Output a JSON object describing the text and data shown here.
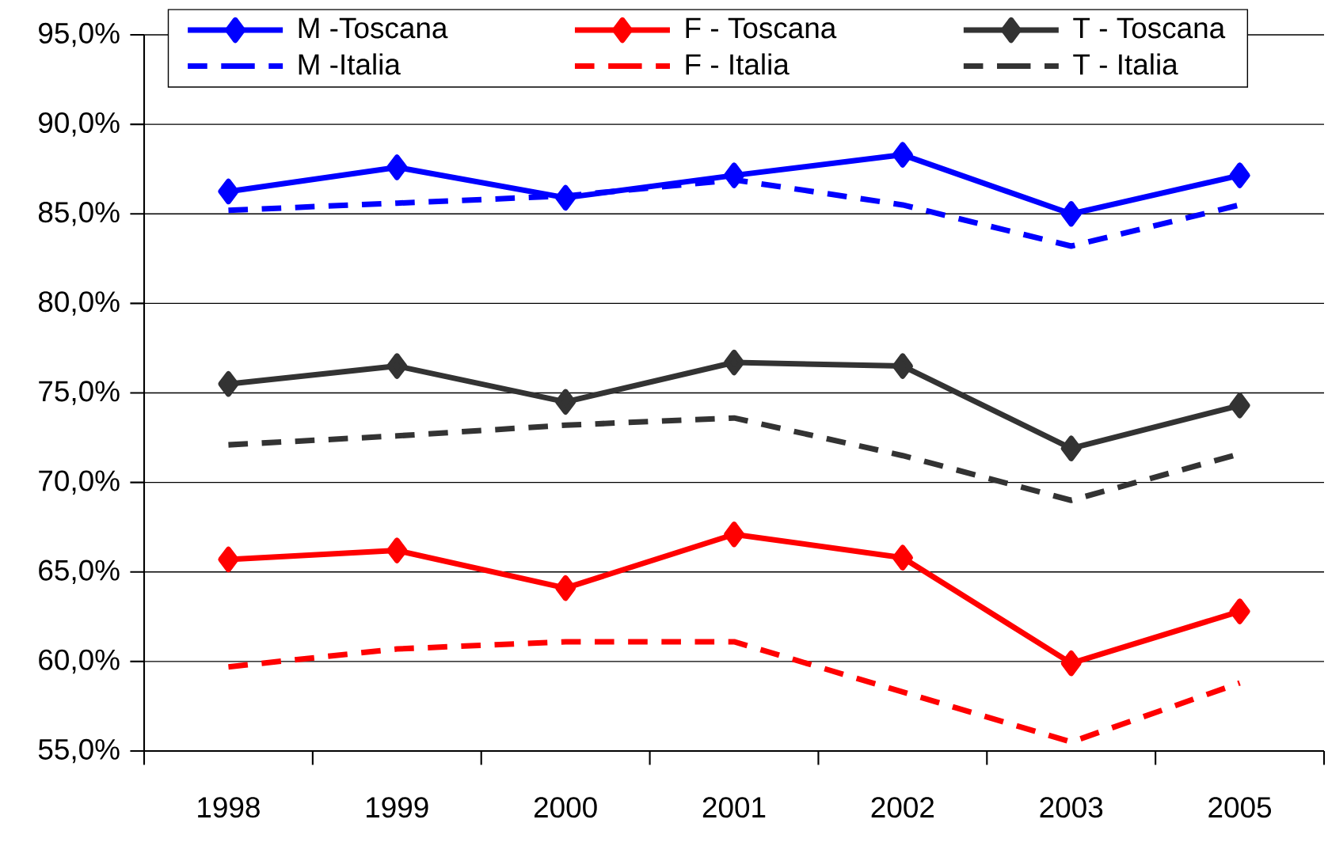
{
  "chart_data": {
    "type": "line",
    "categories": [
      "1998",
      "1999",
      "2000",
      "2001",
      "2002",
      "2003",
      "2005"
    ],
    "series": [
      {
        "name": "M -Toscana",
        "color": "#0000ff",
        "marker": "diamond",
        "line_style": "solid",
        "values": [
          86.25,
          87.6,
          85.9,
          87.15,
          88.3,
          85.0,
          87.15
        ]
      },
      {
        "name": "F - Toscana",
        "color": "#ff0000",
        "marker": "diamond",
        "line_style": "solid",
        "values": [
          65.7,
          66.2,
          64.1,
          67.1,
          65.8,
          59.9,
          62.8
        ]
      },
      {
        "name": "T - Toscana",
        "color": "#333333",
        "marker": "diamond",
        "line_style": "solid",
        "values": [
          75.5,
          76.5,
          74.5,
          76.7,
          76.5,
          71.9,
          74.3
        ]
      },
      {
        "name": "M -Italia",
        "color": "#0000ff",
        "marker": "none",
        "line_style": "dashed",
        "values": [
          85.2,
          85.6,
          86.0,
          86.9,
          85.5,
          83.2,
          85.5
        ]
      },
      {
        "name": "F - Italia",
        "color": "#ff0000",
        "marker": "none",
        "line_style": "dashed",
        "values": [
          59.7,
          60.7,
          61.1,
          61.1,
          58.3,
          55.5,
          58.8
        ]
      },
      {
        "name": "T - Italia",
        "color": "#333333",
        "marker": "none",
        "line_style": "dashed",
        "values": [
          72.1,
          72.6,
          73.2,
          73.6,
          71.5,
          69.0,
          71.6
        ]
      }
    ],
    "ylim": [
      55,
      95
    ],
    "yticks": [
      {
        "value": 55,
        "label": "55,0%"
      },
      {
        "value": 60,
        "label": "60,0%"
      },
      {
        "value": 65,
        "label": "65,0%"
      },
      {
        "value": 70,
        "label": "70,0%"
      },
      {
        "value": 75,
        "label": "75,0%"
      },
      {
        "value": 80,
        "label": "80,0%"
      },
      {
        "value": 85,
        "label": "85,0%"
      },
      {
        "value": 90,
        "label": "90,0%"
      },
      {
        "value": 95,
        "label": "95,0%"
      }
    ],
    "grid": "y",
    "legend": "top"
  }
}
